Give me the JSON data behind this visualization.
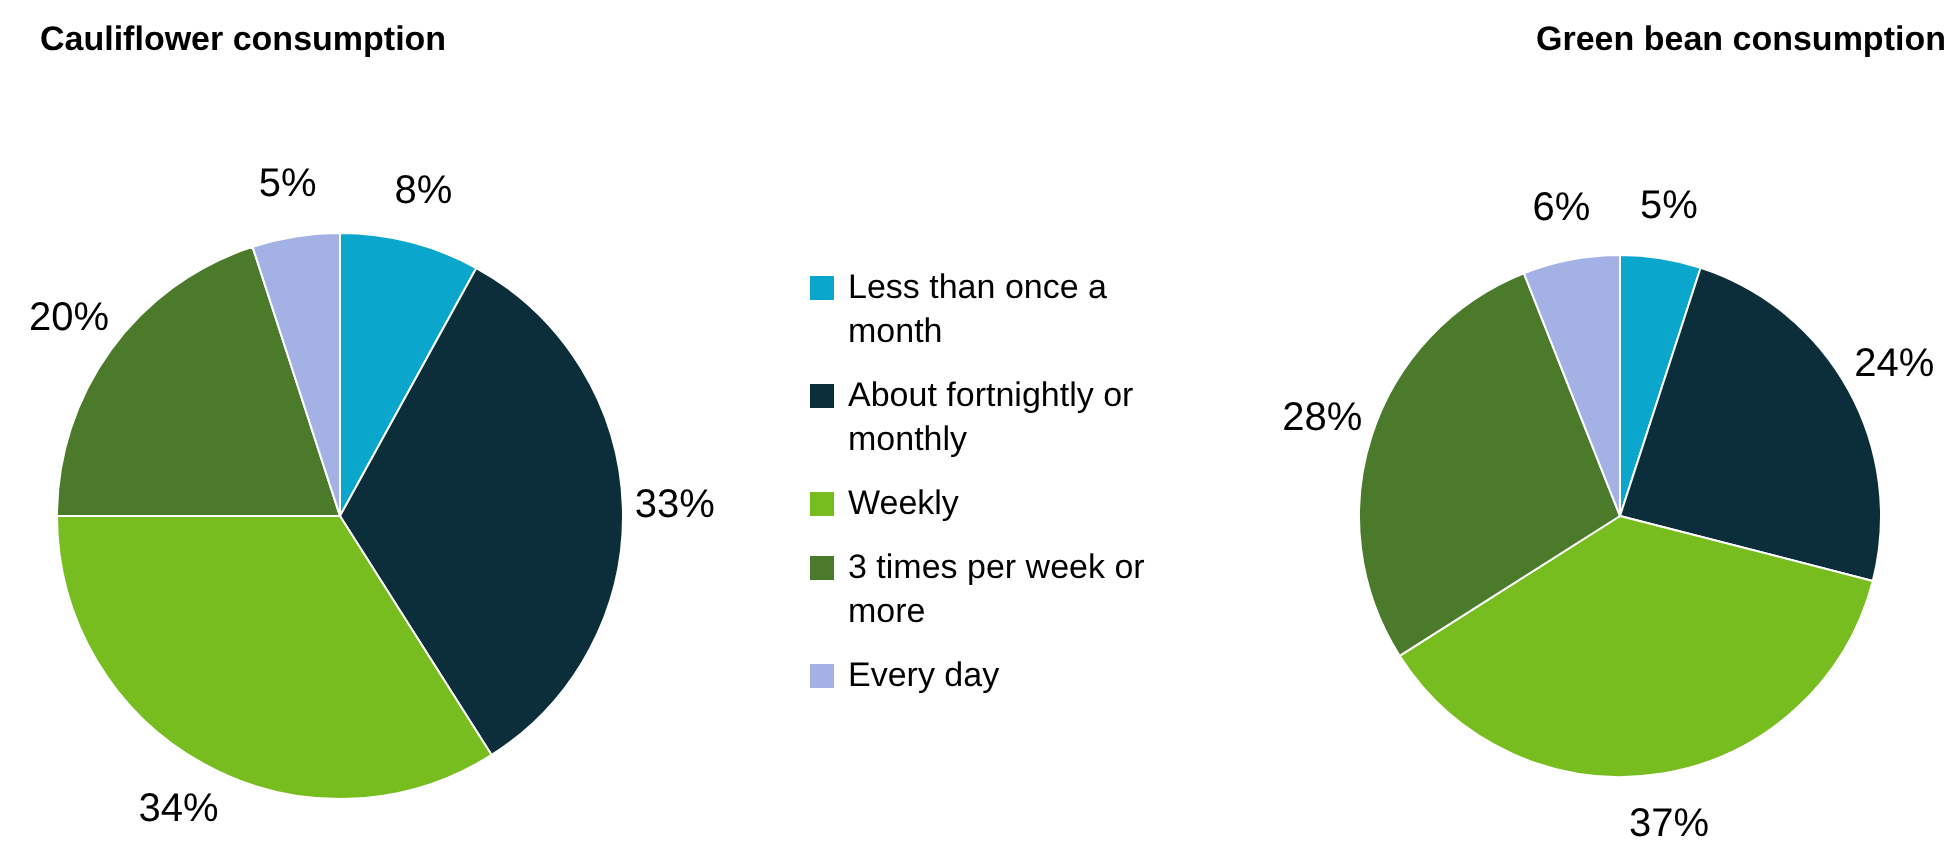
{
  "chart_data": [
    {
      "type": "pie",
      "title": "Cauliflower consumption",
      "categories": [
        "Less than once a month",
        "About fortnightly or monthly",
        "Weekly",
        "3 times per week or more",
        "Every day"
      ],
      "values": [
        8,
        33,
        34,
        20,
        5
      ],
      "value_labels": [
        "8%",
        "33%",
        "34%",
        "20%",
        "5%"
      ],
      "colors": [
        "#0aa6cb",
        "#0c2e3b",
        "#78bd1f",
        "#4b7a2b",
        "#a3b1e4"
      ],
      "legend": "right"
    },
    {
      "type": "pie",
      "title": "Green bean consumption",
      "categories": [
        null,
        null,
        null,
        null,
        null
      ],
      "values": [
        5,
        24,
        37,
        28,
        6
      ],
      "value_labels": [
        "5%",
        "24%",
        "37%",
        "28%",
        "6%"
      ],
      "colors": [
        "#0aa6cb",
        "#0c2e3b",
        "#78bd1f",
        "#4b7a2b",
        "#a3b1e4"
      ]
    }
  ]
}
